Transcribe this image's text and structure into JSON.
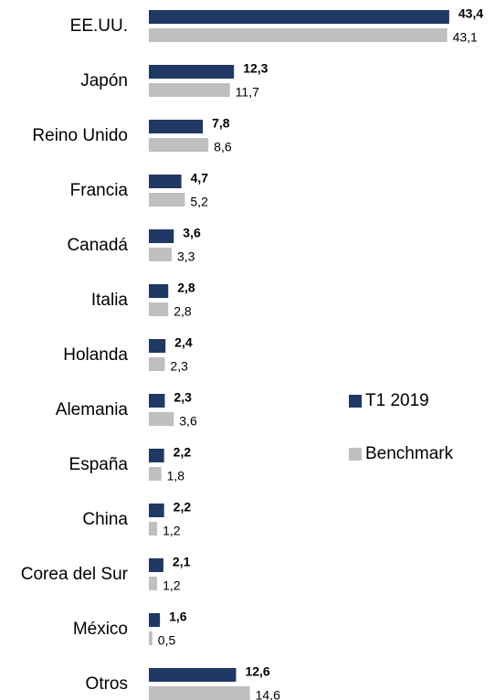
{
  "chart_data": {
    "type": "bar",
    "orientation": "horizontal",
    "categories": [
      "EE.UU.",
      "Japón",
      "Reino Unido",
      "Francia",
      "Canadá",
      "Italia",
      "Holanda",
      "Alemania",
      "España",
      "China",
      "Corea del Sur",
      "México",
      "Otros"
    ],
    "series": [
      {
        "name": "T1 2019",
        "color": "#1f3864",
        "values": [
          43.4,
          12.3,
          7.8,
          4.7,
          3.6,
          2.8,
          2.4,
          2.3,
          2.2,
          2.2,
          2.1,
          1.6,
          12.6
        ],
        "value_labels": [
          "43,4",
          "12,3",
          "7,8",
          "4,7",
          "3,6",
          "2,8",
          "2,4",
          "2,3",
          "2,2",
          "2,2",
          "2,1",
          "1,6",
          "12,6"
        ]
      },
      {
        "name": "Benchmark",
        "color": "#bfbfbf",
        "values": [
          43.1,
          11.7,
          8.6,
          5.2,
          3.3,
          2.8,
          2.3,
          3.6,
          1.8,
          1.2,
          1.2,
          0.5,
          14.6
        ],
        "value_labels": [
          "43,1",
          "11,7",
          "8,6",
          "5,2",
          "3,3",
          "2,8",
          "2,3",
          "3,6",
          "1,8",
          "1,2",
          "1,2",
          "0,5",
          "14,6"
        ]
      }
    ],
    "xlim": [
      0,
      45
    ],
    "legend": "right"
  }
}
